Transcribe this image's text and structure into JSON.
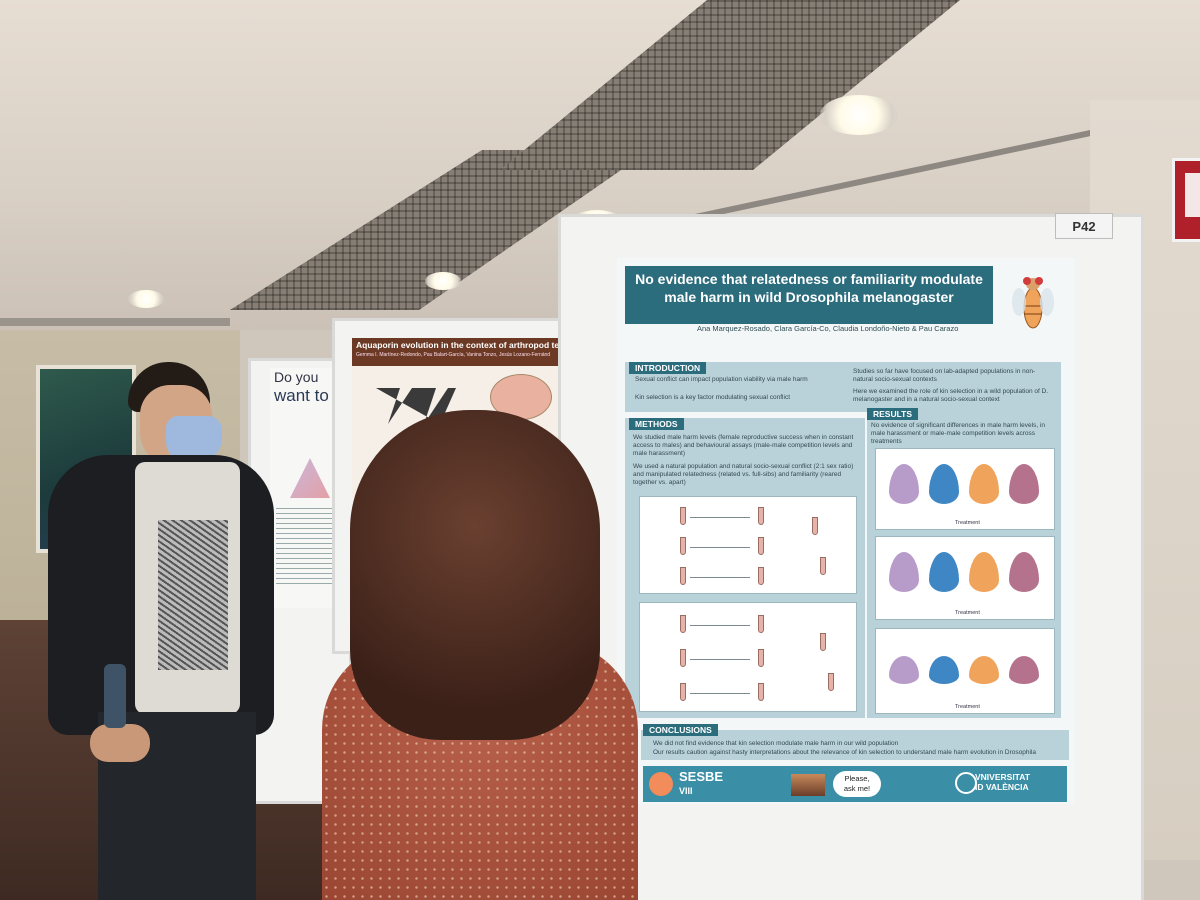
{
  "scene": {
    "booth_label": "P42"
  },
  "far_poster": {
    "title_line1": "Do you",
    "title_line2": "want to"
  },
  "middle_poster": {
    "title": "Aquaporin evolution in the context of arthropod terre",
    "authors": "Gemma I. Martínez-Redondo, Pau Balart-García, Vanina Tonzo, Jesús Lozano-Fernánd"
  },
  "main_poster": {
    "title_line1": "No evidence that relatedness or familiarity modulate",
    "title_line2": "male harm in wild Drosophila melanogaster",
    "authors": "Ana Marquez-Rosado, Clara García-Co, Claudia Londoño-Nieto & Pau Carazo",
    "sections": {
      "introduction": "INTRODUCTION",
      "methods": "METHODS",
      "results": "RESULTS",
      "conclusions": "CONCLUSIONS"
    },
    "intro_bullets": [
      "Sexual conflict can impact population viability via male harm",
      "Kin selection is a key factor modulating sexual conflict",
      "Studies so far have focused on lab-adapted populations in non-natural socio-sexual contexts",
      "Here we examined the role of kin selection in a wild population of D. melanogaster and in a natural socio-sexual context"
    ],
    "methods_text": [
      "We studied male harm levels (female reproductive success when in constant access to males) and behavioural assays (male-male competition levels and male harassment)",
      "We used a natural population and natural socio-sexual conflict (2:1 sex ratio) and manipulated relatedness (related vs. full-sibs) and familiarity (reared together vs. apart)"
    ],
    "results_text": "No evidence of significant differences in male harm levels, in male harassment or male-male competition levels across treatments",
    "treatment_label": "Treatment",
    "conclusion_bullets": [
      "We did not find evidence that kin selection modulate male harm in our wild population",
      "Our results caution against hasty interpretations about the relevance of kin selection to understand male harm evolution in Drosophila"
    ],
    "footer": {
      "society": "SESBE",
      "edition": "VIII",
      "bubble_line1": "Please,",
      "bubble_line2": "ask me!",
      "university_line1": "VNIVERSITAT",
      "university_line2": "ID VALÈNCIA"
    }
  },
  "colors": {
    "poster_header": "#2b6c7d",
    "section_fill": "#b9d2d9",
    "violin_purple": "#b79cc9",
    "violin_blue": "#3f86c4",
    "violin_orange": "#f0a35a",
    "violin_mauve": "#b5728c"
  }
}
